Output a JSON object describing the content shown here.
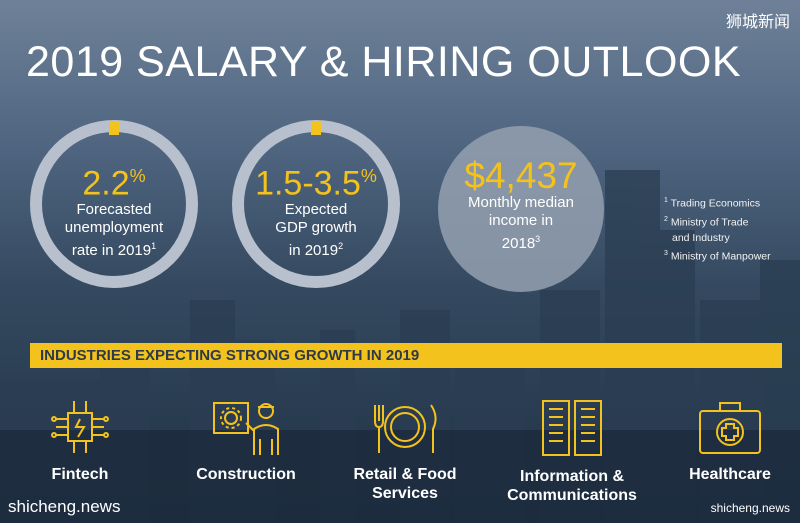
{
  "watermark_top": "狮城新闻",
  "title": "2019 SALARY & HIRING OUTLOOK",
  "stats": [
    {
      "value": "2.2",
      "value_suffix": "%",
      "lines": [
        "Forecasted",
        "unemployment",
        "rate in 2019"
      ],
      "footnote": "1"
    },
    {
      "value": "1.5-3.5",
      "value_suffix": "%",
      "lines": [
        "Expected",
        "GDP growth",
        "in 2019"
      ],
      "footnote": "2"
    },
    {
      "value": "$4,437",
      "value_suffix": "",
      "lines": [
        "Monthly median",
        "income in",
        "2018"
      ],
      "footnote": "3"
    }
  ],
  "footnotes": [
    {
      "num": "1",
      "text": "Trading Economics"
    },
    {
      "num": "2",
      "text": "Ministry of Trade"
    },
    {
      "num": "",
      "text": "and Industry"
    },
    {
      "num": "3",
      "text": "Ministry of Manpower"
    }
  ],
  "banner": "INDUSTRIES EXPECTING STRONG GROWTH IN 2019",
  "industries": [
    {
      "icon": "circuit-chip-icon",
      "label_lines": [
        "Fintech"
      ]
    },
    {
      "icon": "construction-worker-icon",
      "label_lines": [
        "Construction"
      ]
    },
    {
      "icon": "plate-cutlery-icon",
      "label_lines": [
        "Retail & Food",
        "Services"
      ]
    },
    {
      "icon": "server-racks-icon",
      "label_lines": [
        "Information &",
        "Communications"
      ]
    },
    {
      "icon": "medical-kit-icon",
      "label_lines": [
        "Healthcare"
      ]
    }
  ],
  "site_left": "shicheng.news",
  "site_right": "shicheng.news",
  "colors": {
    "accent": "#f4c21c",
    "ring": "#b7c0cc",
    "banner_text": "#2d3a4a"
  }
}
